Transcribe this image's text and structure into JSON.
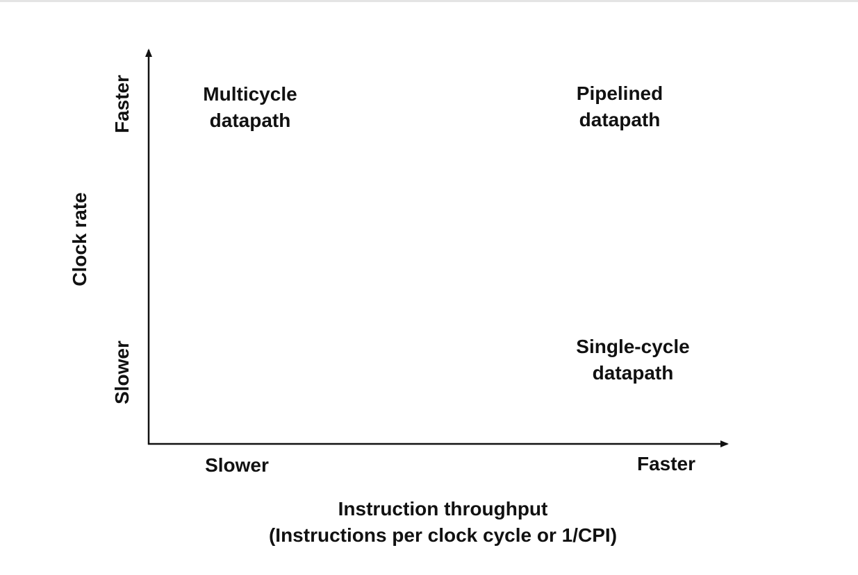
{
  "y_axis": {
    "title": "Clock rate",
    "top_label": "Faster",
    "bottom_label": "Slower"
  },
  "x_axis": {
    "left_label": "Slower",
    "right_label": "Faster",
    "title_line1": "Instruction throughput",
    "title_line2": "(Instructions per clock cycle or 1/CPI)"
  },
  "quadrants": {
    "top_left": [
      "Multicycle",
      "datapath"
    ],
    "top_right": [
      "Pipelined",
      "datapath"
    ],
    "bottom_right": [
      "Single-cycle",
      "datapath"
    ]
  }
}
